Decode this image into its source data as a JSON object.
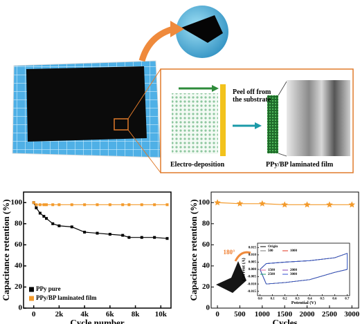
{
  "diagram": {
    "peel_label": "Peel off from the substrate",
    "deposition_label": "Electro-deposition",
    "film_label": "PPy/BP laminated film",
    "bend_label": "180°"
  },
  "chart_data": [
    {
      "type": "line",
      "x_label": "Cycle number",
      "y_label": "Capacitance retention (%)",
      "x": [
        0,
        200,
        500,
        800,
        1000,
        1500,
        2000,
        3000,
        4000,
        5000,
        6000,
        7000,
        7500,
        8500,
        9500,
        10500
      ],
      "series": [
        {
          "name": "PPy pure",
          "color": "#000000",
          "marker": "square",
          "values": [
            100,
            95,
            90,
            87,
            85,
            80,
            78,
            77,
            72,
            71,
            70,
            69,
            67,
            67,
            67,
            66
          ]
        },
        {
          "name": "PPy/BP laminated film",
          "color": "#f39a2b",
          "marker": "square",
          "values": [
            100,
            98,
            98,
            98,
            98,
            98,
            98,
            98,
            98,
            98,
            98,
            98,
            98,
            98,
            98,
            98
          ]
        }
      ],
      "xlim": [
        -800,
        10800
      ],
      "xticks": [
        0,
        {
          "value": 2000,
          "label": "2k"
        },
        {
          "value": 4000,
          "label": "4k"
        },
        {
          "value": 6000,
          "label": "6k"
        },
        {
          "value": 8000,
          "label": "8k"
        },
        {
          "value": 10000,
          "label": "10k"
        }
      ],
      "ylim": [
        0,
        110
      ],
      "yticks": [
        0,
        20,
        40,
        60,
        80,
        100
      ],
      "legend": "lower left"
    },
    {
      "type": "line",
      "x_label": "Cycles",
      "y_label": "Capacitance retention (%)",
      "x": [
        0,
        500,
        1000,
        1500,
        2000,
        2500,
        3000
      ],
      "series": [
        {
          "color": "#f39a2b",
          "marker": "star",
          "values": [
            100,
            99,
            99,
            98,
            98,
            98,
            98
          ]
        }
      ],
      "xlim": [
        -140,
        3150
      ],
      "xticks": [
        0,
        500,
        1000,
        1500,
        2000,
        2500,
        3000
      ],
      "ylim": [
        0,
        110
      ],
      "yticks": [
        0,
        20,
        40,
        60,
        80,
        100
      ]
    },
    {
      "type": "line",
      "x_label": "Potential (V)",
      "y_label": "Current (A)",
      "x": [
        0,
        0.05,
        0.2,
        0.4,
        0.6,
        0.7,
        0.7,
        0.6,
        0.4,
        0.2,
        0.05,
        0
      ],
      "series": [
        {
          "name": "Origin",
          "color": "#000000",
          "values": [
            0,
            0.004,
            0.005,
            0.006,
            0.008,
            0.011,
            0,
            -0.002,
            -0.007,
            -0.009,
            -0.01,
            0
          ]
        },
        {
          "name": "500",
          "color": "#777777",
          "values": [
            0,
            0.004,
            0.005,
            0.006,
            0.008,
            0.011,
            0,
            -0.002,
            -0.007,
            -0.009,
            -0.01,
            0
          ]
        },
        {
          "name": "1000",
          "color": "#e0301e",
          "values": [
            0,
            0.004,
            0.005,
            0.006,
            0.008,
            0.011,
            0,
            -0.002,
            -0.007,
            -0.009,
            -0.01,
            0
          ]
        },
        {
          "name": "1500",
          "color": "#e066a0",
          "values": [
            0,
            0.004,
            0.005,
            0.006,
            0.008,
            0.011,
            0,
            -0.002,
            -0.007,
            -0.009,
            -0.01,
            0
          ]
        },
        {
          "name": "2000",
          "color": "#8a3fb0",
          "values": [
            0,
            0.004,
            0.005,
            0.006,
            0.008,
            0.011,
            0,
            -0.002,
            -0.007,
            -0.009,
            -0.01,
            0
          ]
        },
        {
          "name": "2500",
          "color": "#1a9a6a",
          "values": [
            0,
            0.004,
            0.005,
            0.006,
            0.008,
            0.011,
            0,
            -0.002,
            -0.007,
            -0.009,
            -0.01,
            0
          ]
        },
        {
          "name": "3000",
          "color": "#2f4fd0",
          "values": [
            0,
            0.004,
            0.005,
            0.006,
            0.008,
            0.011,
            0,
            -0.002,
            -0.007,
            -0.009,
            -0.01,
            0
          ]
        }
      ],
      "xlim": [
        -0.02,
        0.72
      ],
      "xticks": [
        {
          "value": 0,
          "label": "0.0"
        },
        0.1,
        0.2,
        0.3,
        0.4,
        0.5,
        0.6,
        0.7
      ],
      "ylim": [
        -0.018,
        0.018
      ],
      "yticks": [
        {
          "value": -0.015,
          "label": "-0.015"
        },
        {
          "value": -0.01,
          "label": "-0.010"
        },
        {
          "value": -0.005,
          "label": "-0.005"
        },
        {
          "value": 0,
          "label": "0.000"
        },
        {
          "value": 0.005,
          "label": "0.005"
        },
        {
          "value": 0.01,
          "label": "0.010"
        },
        {
          "value": 0.015,
          "label": "0.015"
        }
      ],
      "legend": "upper left"
    }
  ]
}
